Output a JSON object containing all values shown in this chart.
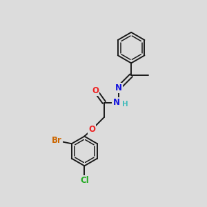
{
  "bg_color": "#dcdcdc",
  "bond_color": "#1a1a1a",
  "bond_width": 1.4,
  "atom_colors": {
    "O": "#ee2222",
    "N": "#1111dd",
    "Br": "#cc6600",
    "Cl": "#22aa22",
    "H": "#44bbbb",
    "C": "#1a1a1a"
  },
  "font_size_atom": 8.5,
  "font_size_small": 7.0
}
